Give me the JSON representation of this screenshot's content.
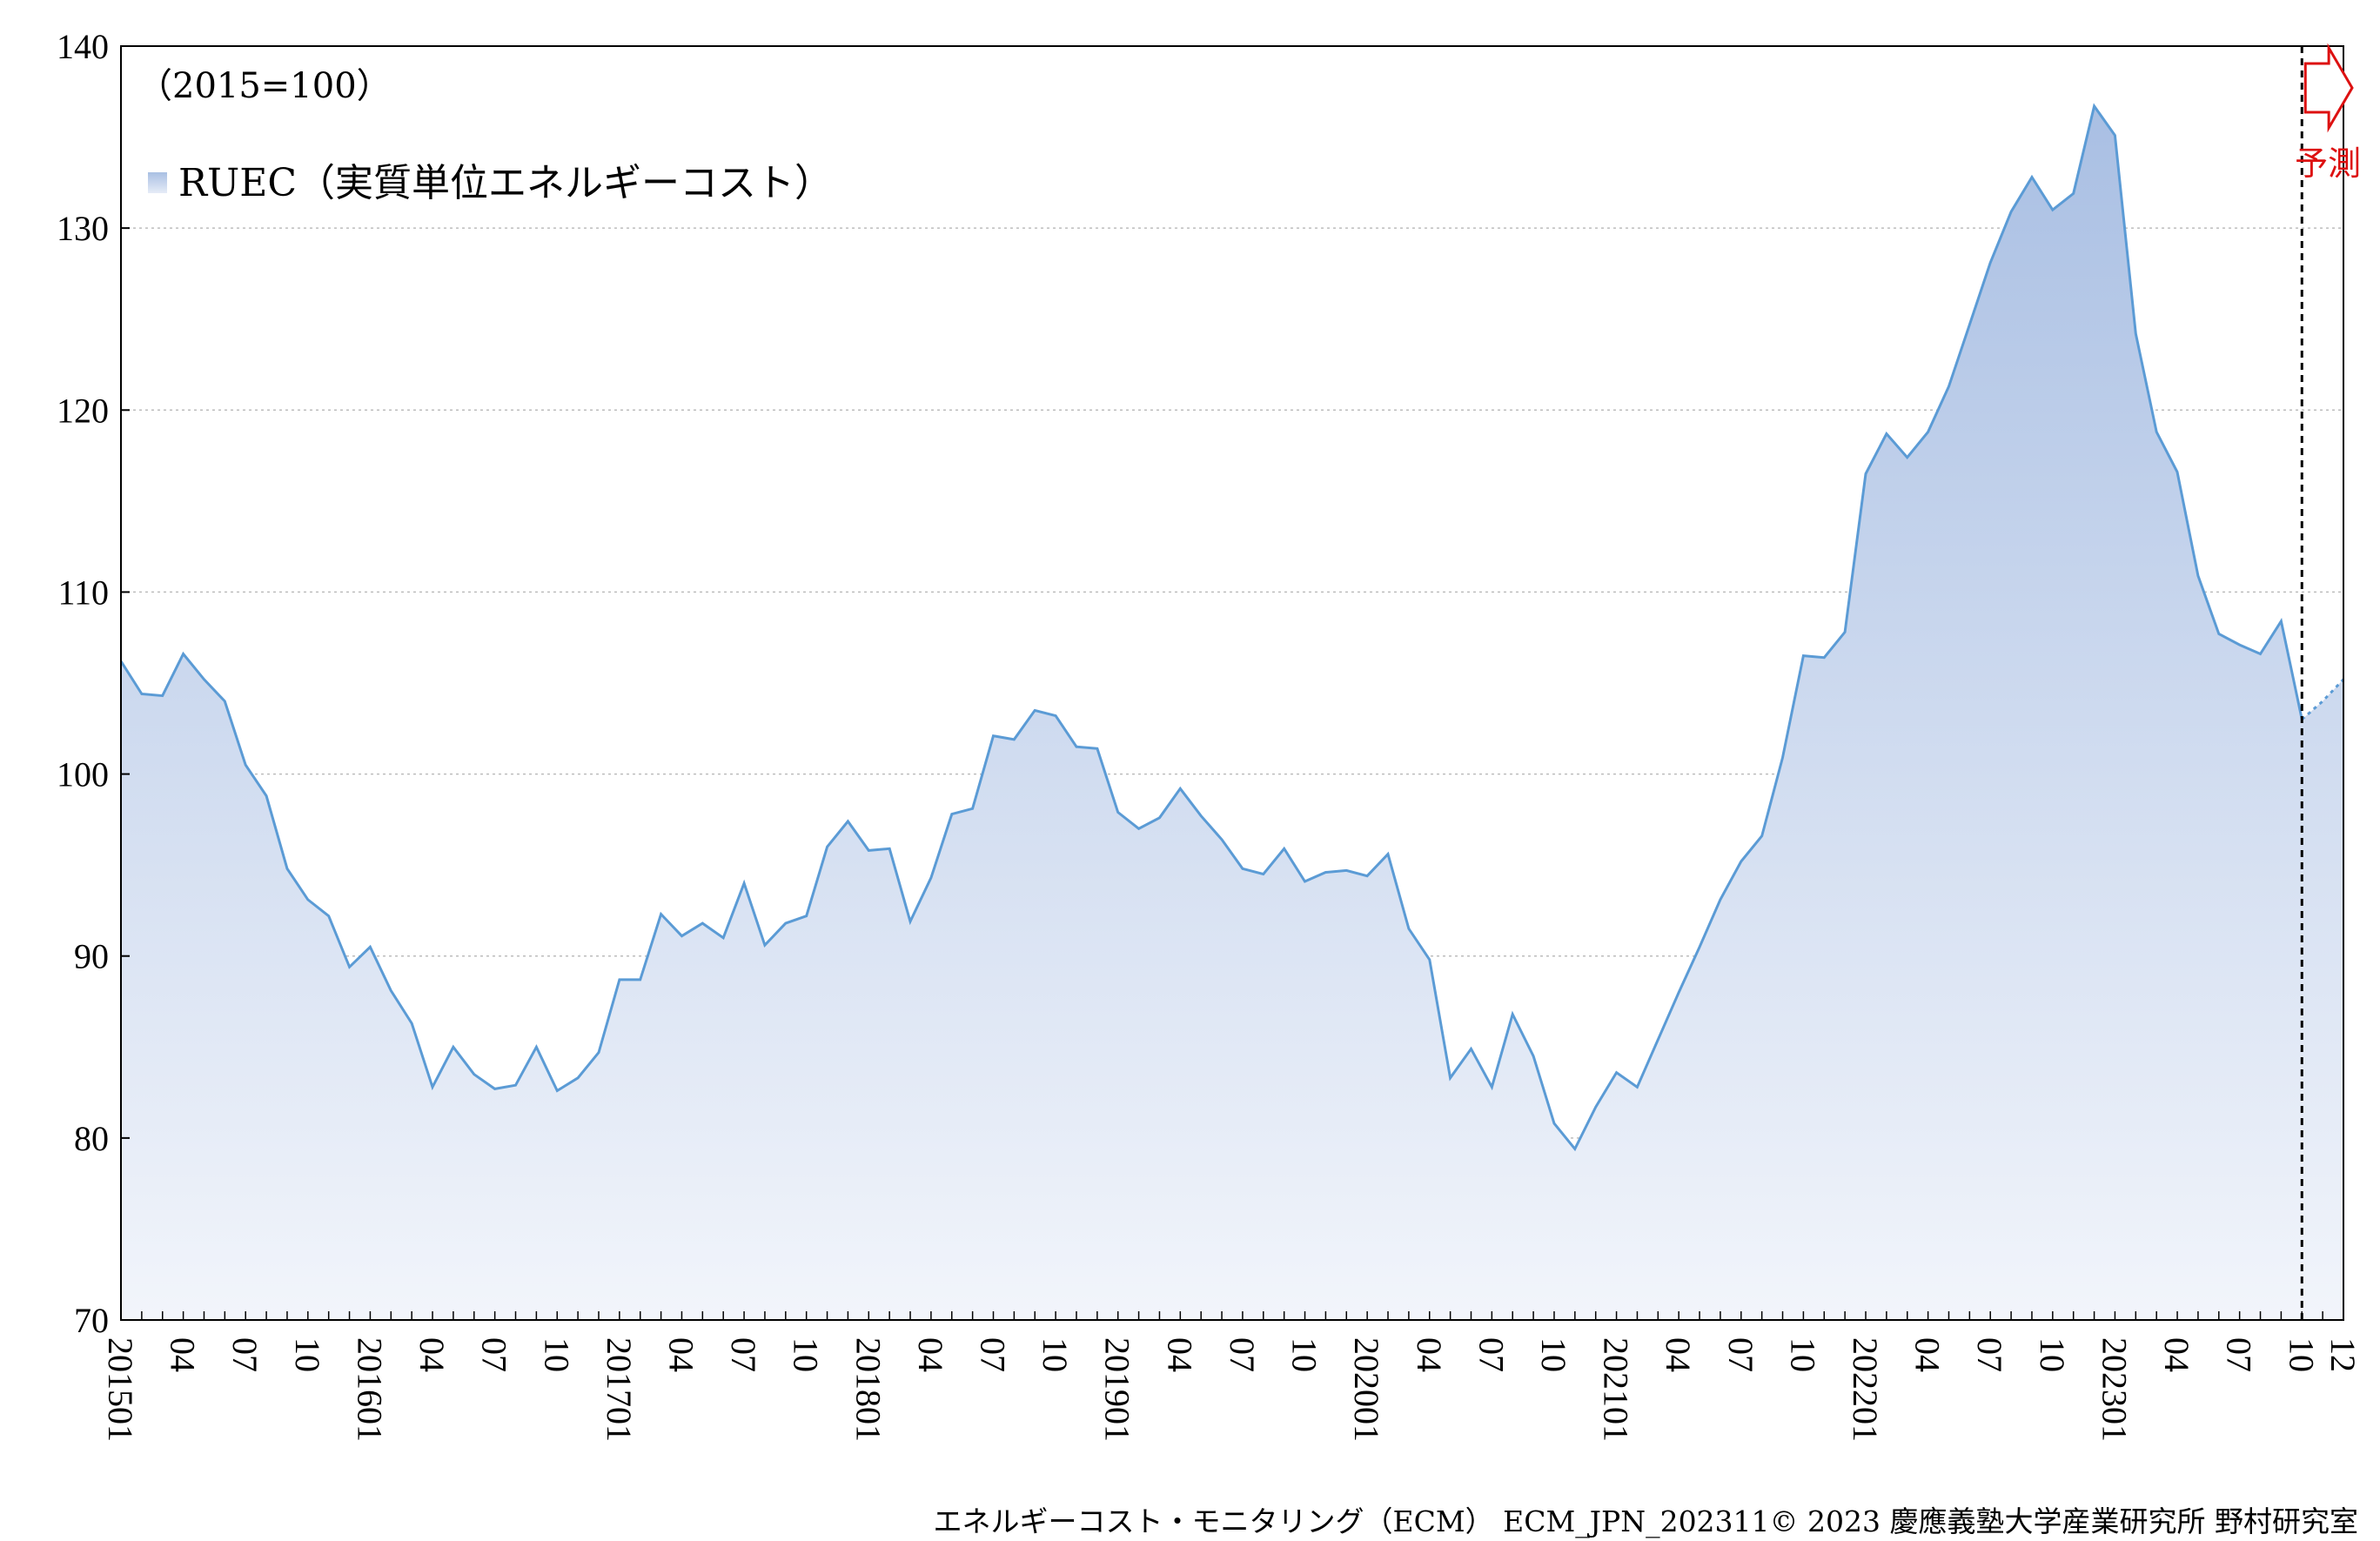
{
  "chart_data": {
    "type": "area",
    "note": "（2015=100）",
    "legend": "RUEC（実質単位エネルギーコスト）",
    "forecast_label": "予測",
    "credit": "エネルギーコスト・モニタリング（ECM） ECM_JPN_202311© 2023 慶應義塾大学産業研究所 野村研究室",
    "ylim": [
      70,
      140
    ],
    "yticks": [
      70,
      80,
      90,
      100,
      110,
      120,
      130,
      140
    ],
    "x_start": "2015-01",
    "x_end": "2023-12",
    "forecast_start_index": 105,
    "xticks": [
      {
        "i": 0,
        "label": "201501"
      },
      {
        "i": 3,
        "label": "04"
      },
      {
        "i": 6,
        "label": "07"
      },
      {
        "i": 9,
        "label": "10"
      },
      {
        "i": 12,
        "label": "201601"
      },
      {
        "i": 15,
        "label": "04"
      },
      {
        "i": 18,
        "label": "07"
      },
      {
        "i": 21,
        "label": "10"
      },
      {
        "i": 24,
        "label": "201701"
      },
      {
        "i": 27,
        "label": "04"
      },
      {
        "i": 30,
        "label": "07"
      },
      {
        "i": 33,
        "label": "10"
      },
      {
        "i": 36,
        "label": "201801"
      },
      {
        "i": 39,
        "label": "04"
      },
      {
        "i": 42,
        "label": "07"
      },
      {
        "i": 45,
        "label": "10"
      },
      {
        "i": 48,
        "label": "201901"
      },
      {
        "i": 51,
        "label": "04"
      },
      {
        "i": 54,
        "label": "07"
      },
      {
        "i": 57,
        "label": "10"
      },
      {
        "i": 60,
        "label": "202001"
      },
      {
        "i": 63,
        "label": "04"
      },
      {
        "i": 66,
        "label": "07"
      },
      {
        "i": 69,
        "label": "10"
      },
      {
        "i": 72,
        "label": "202101"
      },
      {
        "i": 75,
        "label": "04"
      },
      {
        "i": 78,
        "label": "07"
      },
      {
        "i": 81,
        "label": "10"
      },
      {
        "i": 84,
        "label": "202201"
      },
      {
        "i": 87,
        "label": "04"
      },
      {
        "i": 90,
        "label": "07"
      },
      {
        "i": 93,
        "label": "10"
      },
      {
        "i": 96,
        "label": "202301"
      },
      {
        "i": 99,
        "label": "04"
      },
      {
        "i": 102,
        "label": "07"
      },
      {
        "i": 105,
        "label": "10"
      },
      {
        "i": 107,
        "label": "12"
      }
    ],
    "series": [
      {
        "name": "RUEC（実質単位エネルギーコスト）",
        "color": "#5b9bd5",
        "fill_top": "#a9bfe3",
        "fill_bottom": "#f2f5fb",
        "values": [
          106.2,
          104.4,
          104.3,
          106.6,
          105.2,
          104.0,
          100.5,
          98.8,
          94.8,
          93.1,
          92.2,
          89.4,
          90.5,
          88.1,
          86.3,
          82.8,
          85.0,
          83.5,
          82.7,
          82.9,
          85.0,
          82.6,
          83.3,
          84.7,
          88.7,
          88.7,
          92.3,
          91.1,
          91.8,
          91.0,
          94.0,
          90.6,
          91.8,
          92.2,
          96.0,
          97.4,
          95.8,
          95.9,
          91.9,
          94.3,
          97.8,
          98.1,
          102.1,
          101.9,
          103.5,
          103.2,
          101.5,
          101.4,
          97.9,
          97.0,
          97.6,
          99.2,
          97.7,
          96.4,
          94.8,
          94.5,
          95.9,
          94.1,
          94.6,
          94.7,
          94.4,
          95.6,
          91.5,
          89.8,
          83.3,
          84.9,
          82.8,
          86.8,
          84.5,
          80.8,
          79.4,
          81.7,
          83.6,
          82.8,
          85.4,
          88.0,
          90.5,
          93.1,
          95.2,
          96.6,
          100.9,
          106.5,
          106.4,
          107.8,
          116.5,
          118.7,
          117.4,
          118.8,
          121.3,
          124.7,
          128.1,
          130.9,
          132.8,
          131.0,
          131.9,
          136.7,
          135.1,
          124.2,
          118.8,
          116.6,
          110.9,
          107.7,
          107.1,
          106.6,
          108.4,
          103.0,
          104.0,
          105.2
        ]
      }
    ]
  }
}
